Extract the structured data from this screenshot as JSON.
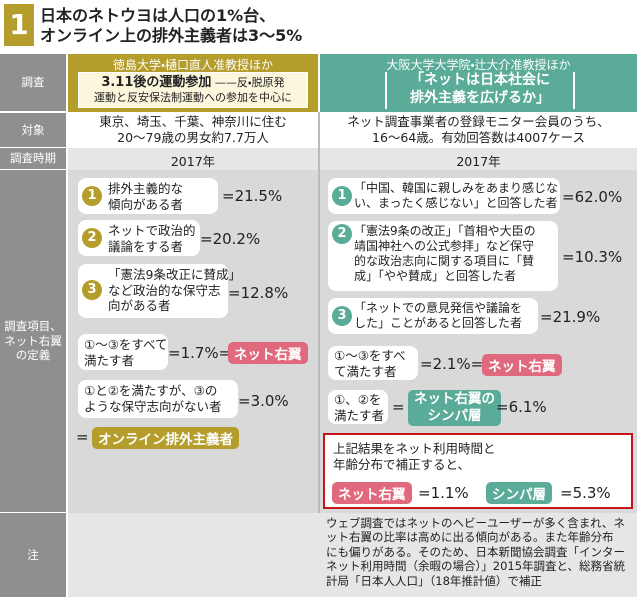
{
  "header": {
    "number": "1",
    "title": [
      "日本のネトウヨは人口の1%台、",
      "オンライン上の排外主義者は3～5%"
    ]
  },
  "row_labels": [
    [
      "調査"
    ],
    [
      "対象"
    ],
    [
      "調査時期"
    ],
    [
      "調査項目、",
      "ネット右翼",
      "の定義"
    ],
    [
      "注"
    ]
  ],
  "left": {
    "author": "徳島大学・樋口直人准教授ほか",
    "study": [
      "3.11後の運動参加",
      "——反・脱原発",
      "運動と反安保法制運動への参加を中心に"
    ],
    "target": [
      "東京、埼玉、千葉、神奈川に住む",
      "20～79歳の男女約7.7万人"
    ],
    "period": "2017年",
    "items": [
      {
        "number": "1",
        "text": [
          "排外主義的な",
          "傾向がある者"
        ],
        "value": "=21.5%"
      },
      {
        "number": "2",
        "text": [
          "ネットで政治的",
          "議論をする者"
        ],
        "value": "=20.2%"
      },
      {
        "number": "3",
        "text": [
          "「憲法9条改正に賛成」",
          "など政治的な保守志",
          "向がある者"
        ],
        "value": "=12.8%"
      }
    ],
    "combined": {
      "text": [
        "①～③をすべて",
        "満たす者"
      ],
      "value": "=1.7%=",
      "badge": "ネット右翼"
    },
    "partial": {
      "text": [
        "①と②を満たすが、③の",
        "ような保守志向がない者"
      ],
      "value": "=3.0%"
    },
    "result": {
      "prefix": "=",
      "badge": "オンライン排外主義者"
    }
  },
  "right": {
    "author": "大阪大学大学院・辻大介准教授ほか",
    "study": [
      "「ネットは日本社会に",
      "排外主義を広げるか」"
    ],
    "target": [
      "ネット調査事業者の登録モニター会員のうち、",
      "16～64歳。有効回答数は4007ケース"
    ],
    "period": "2017年",
    "items": [
      {
        "number": "1",
        "text": [
          "「中国、韓国に親しみをあまり感じな",
          "い、まったく感じない」と回答した者"
        ],
        "value": "=62.0%"
      },
      {
        "number": "2",
        "text": [
          "「憲法9条の改正」「首相や大臣の",
          "靖国神社への公式参拝」など保守",
          "的な政治志向に関する項目に「賛",
          "成」「やや賛成」と回答した者"
        ],
        "value": "=10.3%"
      },
      {
        "number": "3",
        "text": [
          "「ネットでの意見発信や議論を",
          "した」ことがあると回答した者"
        ],
        "value": "=21.9%"
      }
    ],
    "combined": {
      "text": [
        "①～③をすべ",
        "て満たす者"
      ],
      "value": "=2.1%=",
      "badge": "ネット右翼"
    },
    "partial": {
      "text": [
        "①、②を",
        "満たす者"
      ],
      "prefix": "=",
      "badge": [
        "ネット右翼の",
        "シンパ層"
      ],
      "value": "=6.1%"
    },
    "corrected": {
      "text": [
        "上記結果をネット利用時間と",
        "年齢分布で補正すると、"
      ],
      "badge1": "ネット右翼",
      "value1": "=1.1%",
      "badge2": "シンパ層",
      "value2": "=5.3%"
    },
    "note": [
      "ウェブ調査ではネットのヘビーユーザーが多く含まれ、ネ",
      "ット右翼の比率は高めに出る傾向がある。また年齢分布",
      "にも偏りがある。そのため、日本新聞協会調査「インター",
      "ネット利用時間（余暇の場合）」2015年調査と、総務省統",
      "計局「日本人人口」（18年推計値）で補正"
    ]
  }
}
